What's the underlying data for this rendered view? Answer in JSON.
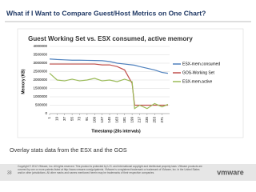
{
  "slide": {
    "title": "What if I Want to Compare Guest/Host Metrics on One Chart?",
    "caption": "Overlay stats data from the ESX and the GOS",
    "page_number": "33",
    "logo": "vmware",
    "footer": "Copyright © 2012 VMware, Inc. All rights reserved. This product is protected by U.S. and international copyright and intellectual property laws. VMware products are covered by one or more patents listed at http://www.vmware.com/go/patents. VMware is a registered trademark or trademark of VMware, Inc. in the United States and/or other jurisdictions. All other marks and names mentioned herein may be trademarks of their respective companies."
  },
  "chart_data": {
    "type": "line",
    "title": "Guest Working Set vs. ESX consumed, active memory",
    "x_label": "Timestamp (20s intervals)",
    "y_label": "Memory (KB)",
    "x": [
      1,
      19,
      37,
      55,
      73,
      91,
      109,
      127,
      145,
      163,
      181,
      199,
      205,
      217,
      235,
      253,
      271,
      285
    ],
    "xlim": [
      1,
      289
    ],
    "xticks": [
      1,
      19,
      37,
      55,
      73,
      91,
      109,
      127,
      145,
      163,
      181,
      199,
      217,
      235,
      253,
      271
    ],
    "ylim": [
      0,
      4000000
    ],
    "yticks": [
      0,
      500000,
      1000000,
      1500000,
      2000000,
      2500000,
      3000000,
      3500000,
      4000000
    ],
    "grid": true,
    "legend": "right",
    "series": [
      {
        "name": "ESX-mem.consumed",
        "color": "#4f81bd",
        "values": [
          3250000,
          3220000,
          3200000,
          3180000,
          3180000,
          3170000,
          3160000,
          3150000,
          3100000,
          3000000,
          2950000,
          2900000,
          2880000,
          2800000,
          2700000,
          2600000,
          2450000,
          2400000
        ]
      },
      {
        "name": "GOS-Working Set",
        "color": "#c0504d",
        "values": [
          2950000,
          2950000,
          2950000,
          2950000,
          2950000,
          2950000,
          2950000,
          2900000,
          2900000,
          2800000,
          2600000,
          1800000,
          500000,
          500000,
          500000,
          500000,
          500000,
          500000
        ]
      },
      {
        "name": "ESX-mem.active",
        "color": "#9bbb59",
        "values": [
          2400000,
          2000000,
          1950000,
          2050000,
          1950000,
          2000000,
          2100000,
          1950000,
          2000000,
          1900000,
          2050000,
          1900000,
          300000,
          500000,
          300000,
          600000,
          400000,
          550000
        ]
      }
    ]
  }
}
